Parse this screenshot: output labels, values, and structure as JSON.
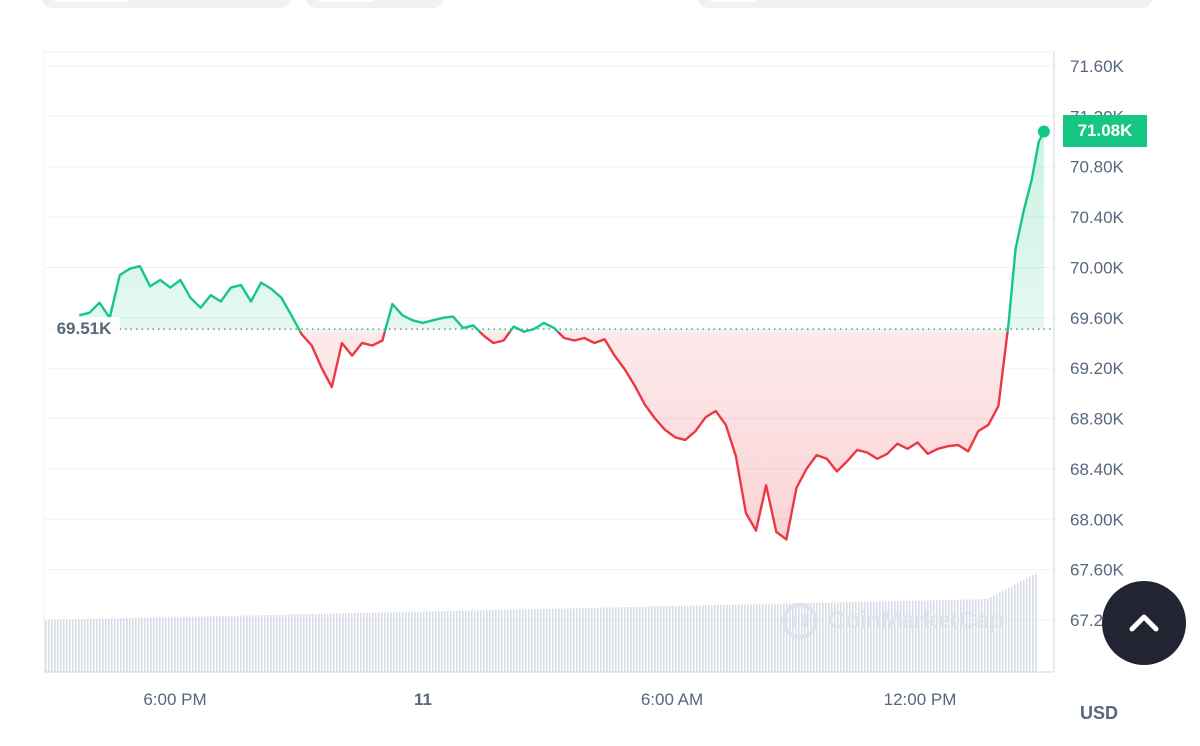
{
  "chart_data": {
    "type": "line",
    "yTicks": [
      "71.60K",
      "71.20K",
      "70.80K",
      "70.40K",
      "70.00K",
      "69.60K",
      "69.20K",
      "68.80K",
      "68.40K",
      "68.00K",
      "67.60K",
      "67.20K"
    ],
    "xTicks": [
      {
        "label": "6:00 PM",
        "bold": false
      },
      {
        "label": "11",
        "bold": true
      },
      {
        "label": "6:00 AM",
        "bold": false
      },
      {
        "label": "12:00 PM",
        "bold": false
      }
    ],
    "ylim": [
      67200,
      71600
    ],
    "reference_value": 69510,
    "reference_label": "69.51K",
    "current_label": "71.08K",
    "currency": "USD",
    "up_color": "#16c784",
    "down_color": "#ea3943",
    "volume_color": "#c9d0df",
    "series": [
      {
        "values": [
          [
            0.035,
            69620
          ],
          [
            0.045,
            69640
          ],
          [
            0.055,
            69720
          ],
          [
            0.065,
            69600
          ],
          [
            0.075,
            69940
          ],
          [
            0.085,
            69990
          ],
          [
            0.095,
            70010
          ],
          [
            0.105,
            69850
          ],
          [
            0.115,
            69900
          ],
          [
            0.125,
            69840
          ],
          [
            0.135,
            69900
          ],
          [
            0.145,
            69760
          ],
          [
            0.155,
            69680
          ],
          [
            0.165,
            69780
          ],
          [
            0.175,
            69730
          ],
          [
            0.185,
            69840
          ],
          [
            0.195,
            69860
          ],
          [
            0.205,
            69730
          ],
          [
            0.215,
            69880
          ],
          [
            0.225,
            69830
          ],
          [
            0.235,
            69760
          ],
          [
            0.245,
            69620
          ],
          [
            0.255,
            69470
          ],
          [
            0.265,
            69380
          ],
          [
            0.275,
            69200
          ],
          [
            0.285,
            69050
          ],
          [
            0.295,
            69400
          ],
          [
            0.305,
            69300
          ],
          [
            0.315,
            69400
          ],
          [
            0.325,
            69380
          ],
          [
            0.335,
            69420
          ],
          [
            0.345,
            69710
          ],
          [
            0.355,
            69620
          ],
          [
            0.365,
            69580
          ],
          [
            0.375,
            69560
          ],
          [
            0.385,
            69580
          ],
          [
            0.395,
            69600
          ],
          [
            0.405,
            69610
          ],
          [
            0.415,
            69520
          ],
          [
            0.425,
            69540
          ],
          [
            0.435,
            69460
          ],
          [
            0.445,
            69400
          ],
          [
            0.455,
            69420
          ],
          [
            0.465,
            69530
          ],
          [
            0.475,
            69490
          ],
          [
            0.485,
            69510
          ],
          [
            0.495,
            69560
          ],
          [
            0.505,
            69520
          ],
          [
            0.515,
            69440
          ],
          [
            0.525,
            69420
          ],
          [
            0.535,
            69440
          ],
          [
            0.545,
            69400
          ],
          [
            0.555,
            69430
          ],
          [
            0.565,
            69300
          ],
          [
            0.575,
            69190
          ],
          [
            0.585,
            69060
          ],
          [
            0.595,
            68910
          ],
          [
            0.605,
            68800
          ],
          [
            0.615,
            68710
          ],
          [
            0.625,
            68650
          ],
          [
            0.635,
            68630
          ],
          [
            0.645,
            68700
          ],
          [
            0.655,
            68810
          ],
          [
            0.665,
            68860
          ],
          [
            0.675,
            68750
          ],
          [
            0.685,
            68500
          ],
          [
            0.695,
            68050
          ],
          [
            0.705,
            67910
          ],
          [
            0.715,
            68270
          ],
          [
            0.725,
            67900
          ],
          [
            0.735,
            67840
          ],
          [
            0.745,
            68250
          ],
          [
            0.755,
            68400
          ],
          [
            0.765,
            68510
          ],
          [
            0.775,
            68480
          ],
          [
            0.785,
            68380
          ],
          [
            0.795,
            68460
          ],
          [
            0.805,
            68550
          ],
          [
            0.815,
            68530
          ],
          [
            0.825,
            68480
          ],
          [
            0.835,
            68520
          ],
          [
            0.845,
            68600
          ],
          [
            0.855,
            68560
          ],
          [
            0.865,
            68610
          ],
          [
            0.875,
            68520
          ],
          [
            0.885,
            68560
          ],
          [
            0.895,
            68580
          ],
          [
            0.905,
            68590
          ],
          [
            0.915,
            68540
          ],
          [
            0.925,
            68700
          ],
          [
            0.935,
            68750
          ],
          [
            0.945,
            68900
          ],
          [
            0.955,
            69550
          ],
          [
            0.962,
            70150
          ],
          [
            0.97,
            70450
          ],
          [
            0.978,
            70700
          ],
          [
            0.985,
            71000
          ],
          [
            0.99,
            71080
          ]
        ]
      }
    ]
  },
  "scroll_top": {
    "icon": "chevron-up-icon"
  },
  "watermark": {
    "text": "CoinMarketCap"
  }
}
